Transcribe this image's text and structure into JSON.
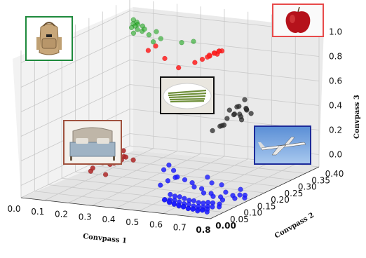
{
  "chart_data": {
    "type": "scatter",
    "projection": "3d",
    "title": "",
    "xlabel": "Convpass 1",
    "ylabel": "Convpass 2",
    "zlabel": "Convpass 3",
    "xlim": [
      0.0,
      0.8
    ],
    "ylim": [
      0.0,
      0.4
    ],
    "zlim": [
      -0.1,
      1.1
    ],
    "x_ticks": [
      "0.0",
      "0.1",
      "0.2",
      "0.3",
      "0.4",
      "0.5",
      "0.6",
      "0.7",
      "0.8"
    ],
    "y_ticks": [
      "0.00",
      "0.05",
      "0.10",
      "0.15",
      "0.20",
      "0.25",
      "0.30",
      "0.35",
      "0.40"
    ],
    "z_ticks": [
      "0.0",
      "0.2",
      "0.4",
      "0.6",
      "0.8",
      "1.0"
    ],
    "grid": true,
    "legend": "images",
    "series": [
      {
        "color": "#1fa81f",
        "edge": "#0d6e0d",
        "icon": "backpack-image",
        "points": [
          [
            0.06,
            0.36,
            0.95
          ],
          [
            0.065,
            0.35,
            0.93
          ],
          [
            0.07,
            0.365,
            0.96
          ],
          [
            0.075,
            0.355,
            0.94
          ],
          [
            0.08,
            0.36,
            0.95
          ],
          [
            0.09,
            0.35,
            0.92
          ],
          [
            0.1,
            0.36,
            0.94
          ],
          [
            0.11,
            0.35,
            0.91
          ],
          [
            0.05,
            0.37,
            0.97
          ],
          [
            0.085,
            0.34,
            0.9
          ],
          [
            0.12,
            0.35,
            0.93
          ],
          [
            0.15,
            0.34,
            0.9
          ],
          [
            0.17,
            0.35,
            0.92
          ],
          [
            0.2,
            0.34,
            0.88
          ],
          [
            0.18,
            0.33,
            0.86
          ],
          [
            0.3,
            0.33,
            0.88
          ],
          [
            0.35,
            0.33,
            0.9
          ]
        ]
      },
      {
        "color": "#ff2020",
        "edge": "#cc0000",
        "icon": "apple-image",
        "points": [
          [
            0.48,
            0.05,
            1.15
          ],
          [
            0.5,
            0.06,
            1.18
          ],
          [
            0.55,
            0.05,
            1.1
          ],
          [
            0.62,
            0.04,
            1.05
          ],
          [
            0.7,
            0.03,
            1.12
          ],
          [
            0.72,
            0.04,
            1.14
          ],
          [
            0.74,
            0.05,
            1.16
          ],
          [
            0.75,
            0.04,
            1.18
          ],
          [
            0.76,
            0.05,
            1.19
          ],
          [
            0.77,
            0.04,
            1.2
          ],
          [
            0.78,
            0.05,
            1.21
          ],
          [
            0.78,
            0.06,
            1.2
          ],
          [
            0.76,
            0.06,
            1.17
          ],
          [
            0.73,
            0.05,
            1.15
          ],
          [
            0.79,
            0.04,
            1.22
          ]
        ]
      },
      {
        "color": "#303030",
        "edge": "#000000",
        "icon": "asparagus-image",
        "points": [
          [
            0.72,
            0.14,
            0.62
          ],
          [
            0.74,
            0.15,
            0.64
          ],
          [
            0.76,
            0.14,
            0.66
          ],
          [
            0.78,
            0.15,
            0.63
          ],
          [
            0.75,
            0.13,
            0.6
          ],
          [
            0.73,
            0.15,
            0.58
          ],
          [
            0.77,
            0.16,
            0.61
          ],
          [
            0.79,
            0.14,
            0.65
          ],
          [
            0.71,
            0.14,
            0.55
          ],
          [
            0.7,
            0.13,
            0.5
          ],
          [
            0.74,
            0.16,
            0.57
          ],
          [
            0.76,
            0.15,
            0.54
          ],
          [
            0.78,
            0.13,
            0.59
          ],
          [
            0.72,
            0.12,
            0.52
          ],
          [
            0.68,
            0.14,
            0.48
          ],
          [
            0.75,
            0.17,
            0.68
          ],
          [
            0.8,
            0.15,
            0.6
          ],
          [
            0.66,
            0.13,
            0.45
          ]
        ]
      },
      {
        "color": "#b02a2a",
        "edge": "#7a1010",
        "icon": "bed-image",
        "points": [
          [
            0.3,
            0.02,
            0.3
          ],
          [
            0.32,
            0.03,
            0.32
          ],
          [
            0.34,
            0.02,
            0.28
          ],
          [
            0.36,
            0.03,
            0.31
          ],
          [
            0.38,
            0.02,
            0.33
          ],
          [
            0.4,
            0.03,
            0.29
          ],
          [
            0.42,
            0.02,
            0.3
          ],
          [
            0.44,
            0.03,
            0.27
          ],
          [
            0.35,
            0.04,
            0.25
          ],
          [
            0.37,
            0.02,
            0.24
          ],
          [
            0.31,
            0.03,
            0.22
          ],
          [
            0.28,
            0.02,
            0.18
          ],
          [
            0.33,
            0.04,
            0.2
          ],
          [
            0.39,
            0.03,
            0.26
          ],
          [
            0.26,
            0.03,
            0.14
          ],
          [
            0.41,
            0.02,
            0.35
          ],
          [
            0.3,
            0.05,
            0.1
          ]
        ]
      },
      {
        "color": "#1a1aff",
        "edge": "#0000aa",
        "icon": "airplane-image",
        "points": [
          [
            0.55,
            0.05,
            -0.05
          ],
          [
            0.56,
            0.06,
            -0.06
          ],
          [
            0.57,
            0.05,
            -0.07
          ],
          [
            0.58,
            0.06,
            -0.06
          ],
          [
            0.59,
            0.05,
            -0.08
          ],
          [
            0.6,
            0.06,
            -0.07
          ],
          [
            0.61,
            0.05,
            -0.09
          ],
          [
            0.62,
            0.06,
            -0.08
          ],
          [
            0.63,
            0.05,
            -0.09
          ],
          [
            0.64,
            0.06,
            -0.08
          ],
          [
            0.65,
            0.05,
            -0.1
          ],
          [
            0.66,
            0.06,
            -0.09
          ],
          [
            0.67,
            0.05,
            -0.1
          ],
          [
            0.68,
            0.06,
            -0.09
          ],
          [
            0.69,
            0.05,
            -0.1
          ],
          [
            0.7,
            0.06,
            -0.09
          ],
          [
            0.71,
            0.05,
            -0.1
          ],
          [
            0.72,
            0.06,
            -0.08
          ],
          [
            0.73,
            0.05,
            -0.09
          ],
          [
            0.74,
            0.06,
            -0.08
          ],
          [
            0.56,
            0.04,
            -0.04
          ],
          [
            0.58,
            0.04,
            -0.05
          ],
          [
            0.6,
            0.04,
            -0.06
          ],
          [
            0.62,
            0.04,
            -0.07
          ],
          [
            0.64,
            0.04,
            -0.08
          ],
          [
            0.66,
            0.04,
            -0.09
          ],
          [
            0.68,
            0.04,
            -0.09
          ],
          [
            0.7,
            0.04,
            -0.1
          ],
          [
            0.72,
            0.04,
            -0.09
          ],
          [
            0.74,
            0.04,
            -0.1
          ],
          [
            0.55,
            0.07,
            -0.03
          ],
          [
            0.57,
            0.07,
            -0.04
          ],
          [
            0.59,
            0.07,
            -0.04
          ],
          [
            0.61,
            0.07,
            -0.05
          ],
          [
            0.63,
            0.07,
            -0.06
          ],
          [
            0.65,
            0.07,
            -0.06
          ],
          [
            0.67,
            0.07,
            -0.07
          ],
          [
            0.69,
            0.07,
            -0.07
          ],
          [
            0.71,
            0.07,
            -0.06
          ],
          [
            0.73,
            0.07,
            -0.06
          ],
          [
            0.52,
            0.06,
            0.05
          ],
          [
            0.54,
            0.07,
            0.08
          ],
          [
            0.56,
            0.08,
            0.1
          ],
          [
            0.58,
            0.07,
            0.12
          ],
          [
            0.6,
            0.08,
            0.09
          ],
          [
            0.62,
            0.09,
            0.06
          ],
          [
            0.64,
            0.08,
            0.04
          ],
          [
            0.66,
            0.09,
            0.02
          ],
          [
            0.68,
            0.08,
            0.0
          ],
          [
            0.7,
            0.09,
            -0.01
          ],
          [
            0.72,
            0.08,
            -0.02
          ],
          [
            0.74,
            0.09,
            -0.03
          ],
          [
            0.76,
            0.08,
            -0.04
          ],
          [
            0.77,
            0.06,
            -0.05
          ],
          [
            0.78,
            0.05,
            -0.06
          ],
          [
            0.75,
            0.1,
            0.0
          ],
          [
            0.78,
            0.1,
            -0.02
          ],
          [
            0.8,
            0.09,
            -0.03
          ],
          [
            0.81,
            0.1,
            -0.01
          ],
          [
            0.82,
            0.11,
            -0.02
          ],
          [
            0.83,
            0.1,
            -0.03
          ],
          [
            0.5,
            0.09,
            0.14
          ],
          [
            0.51,
            0.1,
            0.17
          ],
          [
            0.53,
            0.1,
            0.13
          ],
          [
            0.65,
            0.12,
            0.08
          ],
          [
            0.68,
            0.11,
            0.05
          ],
          [
            0.71,
            0.12,
            0.03
          ],
          [
            0.79,
            0.12,
            0.01
          ]
        ]
      }
    ]
  }
}
